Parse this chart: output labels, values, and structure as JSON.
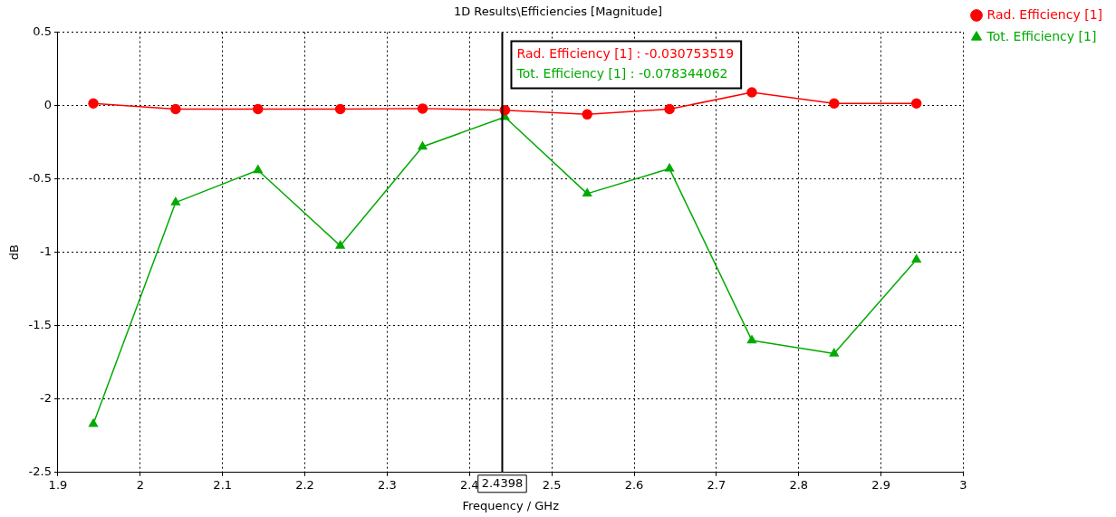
{
  "chart_data": {
    "type": "line",
    "title": "1D Results\\Efficiencies [Magnitude]",
    "xlabel": "Frequency / GHz",
    "ylabel": "dB",
    "x": [
      1.943,
      2.043,
      2.143,
      2.243,
      2.343,
      2.443,
      2.543,
      2.643,
      2.743,
      2.843,
      2.943
    ],
    "series": [
      {
        "name": "Rad. Efficiency [1]",
        "color": "#ff0000",
        "marker": "circle",
        "values": [
          0.015,
          -0.024,
          -0.024,
          -0.024,
          -0.02,
          -0.031,
          -0.06,
          -0.024,
          0.09,
          0.015,
          0.015
        ]
      },
      {
        "name": "Tot. Efficiency [1]",
        "color": "#00aa00",
        "marker": "triangle",
        "values": [
          -2.17,
          -0.66,
          -0.44,
          -0.955,
          -0.28,
          -0.078,
          -0.6,
          -0.43,
          -1.6,
          -1.69,
          -1.05
        ]
      }
    ],
    "xlim": [
      1.9,
      3
    ],
    "xticks": [
      1.9,
      2,
      2.1,
      2.2,
      2.3,
      2.4,
      2.5,
      2.6,
      2.7,
      2.8,
      2.9,
      3
    ],
    "ylim": [
      -2.5,
      0.5
    ],
    "yticks": [
      -2.5,
      -2,
      -1.5,
      -1,
      -0.5,
      0,
      0.5
    ],
    "ref_lines": [
      {
        "axis": "x",
        "value": 2.4398,
        "label": "2.4398",
        "color": "#000000"
      }
    ],
    "annotations": [
      "Rad. Efficiency [1] : -0.030753519",
      "Tot. Efficiency [1] : -0.078344062"
    ],
    "grid": true,
    "legend": "top right",
    "line_style": "solid"
  }
}
